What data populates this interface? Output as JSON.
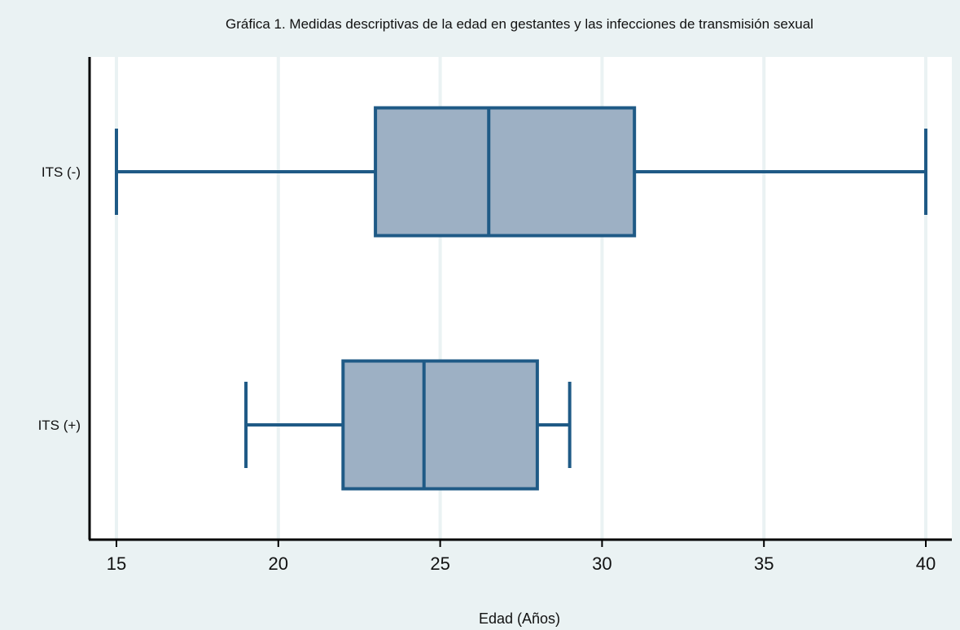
{
  "chart_data": {
    "type": "boxplot",
    "orientation": "horizontal",
    "title": "Gráfica 1. Medidas descriptivas de la edad en gestantes y las infecciones de transmisión sexual",
    "xlabel": "Edad (Años)",
    "ylabel": "",
    "xlim": [
      15,
      40
    ],
    "xticks": [
      15,
      20,
      25,
      30,
      35,
      40
    ],
    "grid": true,
    "categories": [
      "ITS (-)",
      "ITS (+)"
    ],
    "series": [
      {
        "category": "ITS (-)",
        "min": 15,
        "q1": 23,
        "median": 26.5,
        "q3": 31,
        "max": 40
      },
      {
        "category": "ITS (+)",
        "min": 19,
        "q1": 22,
        "median": 24.5,
        "q3": 28,
        "max": 29
      }
    ],
    "colors": {
      "background": "#eaf2f3",
      "plot_area": "#ffffff",
      "grid": "#eaf2f3",
      "box_fill": "#9db0c4",
      "box_stroke": "#1f5a86",
      "axis": "#000000"
    }
  }
}
